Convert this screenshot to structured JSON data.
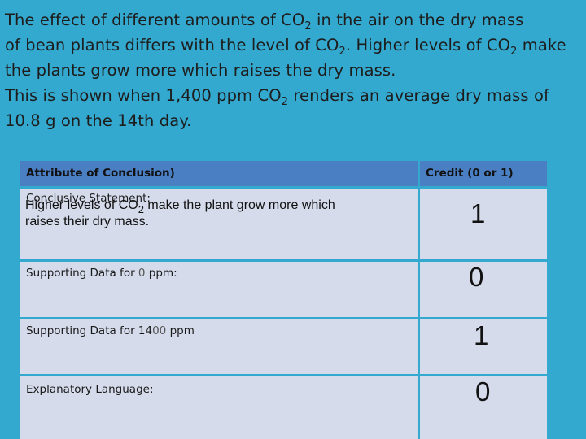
{
  "intro": {
    "line1_a": "The effect of different amounts of CO",
    "line1_sub": "2",
    "line1_b": " in the air on the dry mass",
    "line2_a": "of bean plants differs with the level of CO",
    "line2_sub": "2",
    "line2_b": ". Higher levels of CO",
    "line2_sub2": "2",
    "line2_c": " make",
    "line3": "the plants grow more which raises the dry mass.",
    "line4_a": "This is shown when 1,400 ppm CO",
    "line4_sub": "2",
    "line4_b": " renders an average dry mass of",
    "line5": "10.8 g on the 14th day."
  },
  "table": {
    "header": {
      "attribute": "Attribute of Conclusion)",
      "credit": "Credit (0 or 1)"
    },
    "rows": [
      {
        "label": "Conclusive Statement:",
        "answer_a": "Higher levels of CO",
        "answer_sub": "2",
        "answer_b": " make the plant grow more which",
        "answer_line2": "raises their dry mass.",
        "credit": "1"
      },
      {
        "label_a": "Supporting Data for ",
        "label_val": "0",
        "label_b": " ppm:",
        "credit": "0"
      },
      {
        "label_a": "Supporting Data for 14",
        "label_val": "00",
        "label_b": " ppm",
        "credit": "1"
      },
      {
        "label": "Explanatory Language:",
        "credit": "0"
      }
    ]
  },
  "colors": {
    "background": "#34a9cf",
    "header_fill": "#4a7fc4",
    "row_fill": "#d5dbeb"
  }
}
